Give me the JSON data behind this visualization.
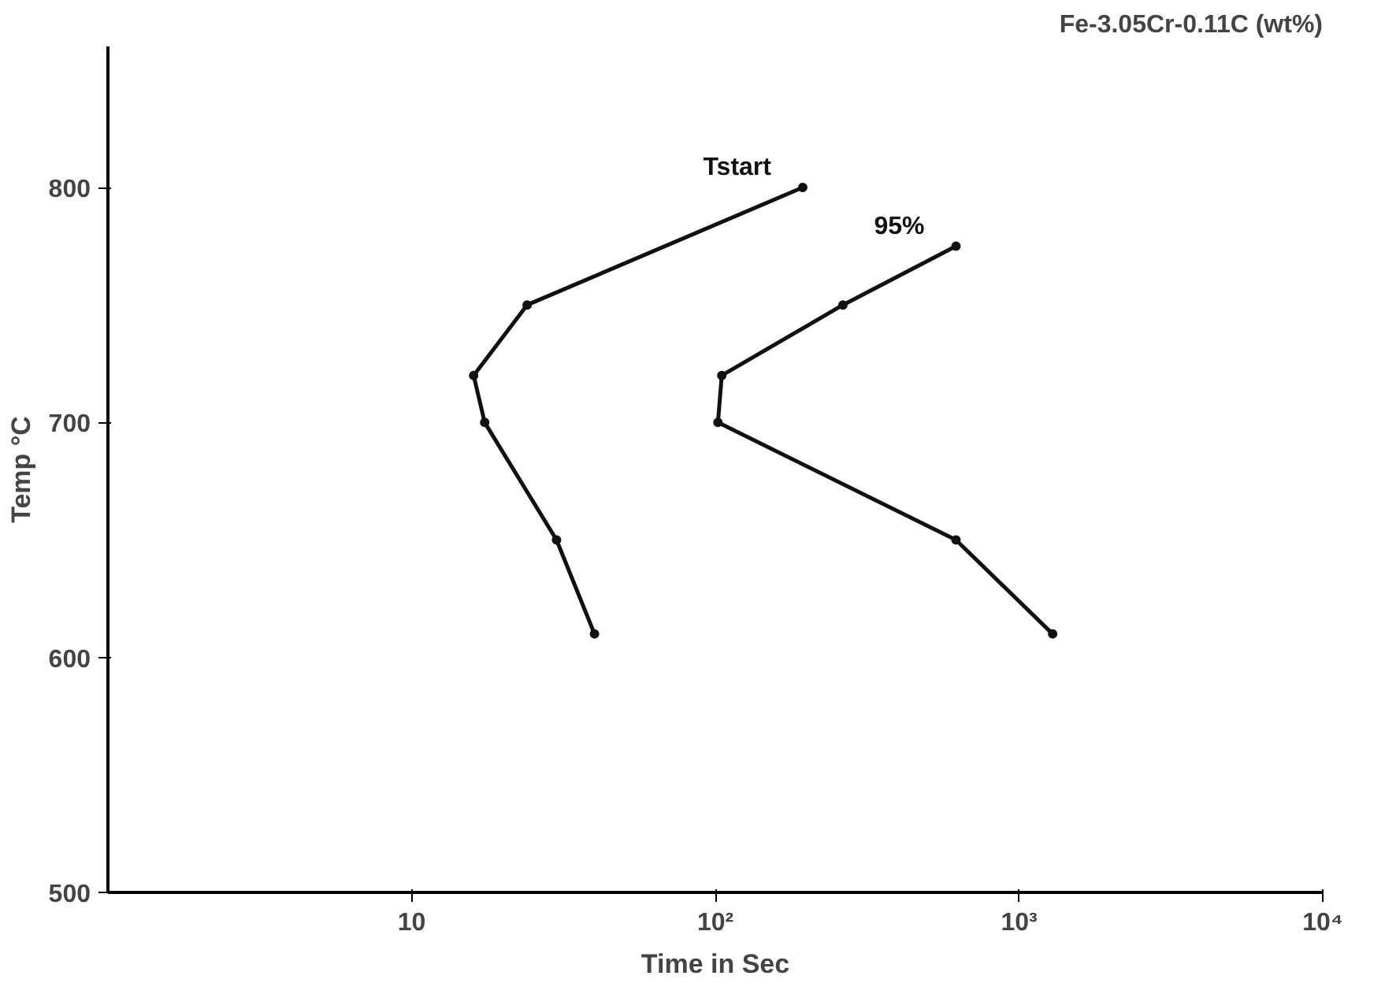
{
  "chart_data": {
    "type": "line",
    "title": "Fe-3.05Cr-0.11C (wt%)",
    "xlabel": "Time in Sec",
    "ylabel": "Temp °C",
    "log": "x",
    "grid": false,
    "marker": "circle",
    "line_style": "solid",
    "xlim": [
      1,
      10000
    ],
    "ylim": [
      500,
      860
    ],
    "xticks": [
      10,
      {
        "value": 100,
        "label": "10²"
      },
      {
        "value": 1000,
        "label": "10³"
      },
      {
        "value": 10000,
        "label": "10⁴"
      }
    ],
    "yticks": [
      500,
      600,
      700,
      800
    ],
    "series": [
      {
        "name": "Tstart",
        "color": "#111111",
        "x": [
          194,
          24,
          16,
          17.4,
          30,
          40
        ],
        "values": [
          800,
          750,
          720,
          700,
          650,
          610
        ]
      },
      {
        "name": "95%",
        "color": "#111111",
        "x": [
          620,
          263,
          105,
          102,
          620,
          1290
        ],
        "values": [
          775,
          750,
          720,
          700,
          650,
          610
        ]
      }
    ]
  }
}
